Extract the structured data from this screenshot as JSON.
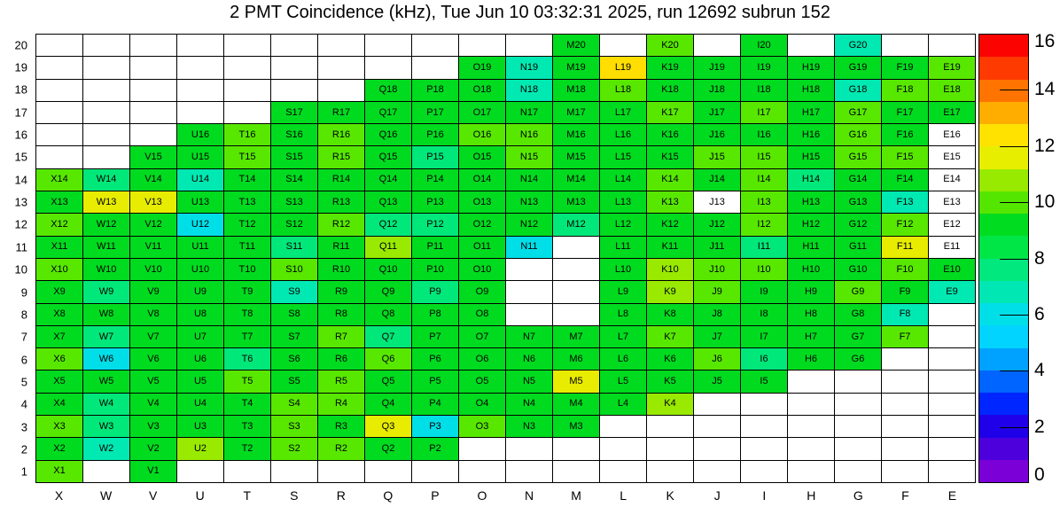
{
  "title": "2 PMT Coincidence (kHz), Tue Jun 10 03:32:31 2025, run 12692 subrun 152",
  "chart_data": {
    "type": "heatmap",
    "title": "2 PMT Coincidence (kHz), Tue Jun 10 03:32:31 2025, run 12692 subrun 152",
    "units": "kHz",
    "run": "12692",
    "subrun": "152",
    "timestamp_shown": "Tue Jun 10 03:32:31 2025",
    "x_categories": [
      "X",
      "W",
      "V",
      "U",
      "T",
      "S",
      "R",
      "Q",
      "P",
      "O",
      "N",
      "M",
      "L",
      "K",
      "J",
      "I",
      "H",
      "G",
      "F",
      "E"
    ],
    "y_categories": [
      1,
      2,
      3,
      4,
      5,
      6,
      7,
      8,
      9,
      10,
      11,
      12,
      13,
      14,
      15,
      16,
      17,
      18,
      19,
      20
    ],
    "zlim": [
      0,
      16
    ],
    "colorbar_tick_values": [
      0,
      2,
      4,
      6,
      8,
      10,
      12,
      14,
      16
    ],
    "colorbar_tick_labels": [
      "0",
      "2",
      "4",
      "6",
      "8",
      "10",
      "12",
      "14",
      "16"
    ],
    "grid_on": true,
    "legend_position": "right-colorbar",
    "cell_label_format": "{column}{row}",
    "palette_low_to_high": [
      "#7B00D8",
      "#4E00DC",
      "#1F00E8",
      "#0026FF",
      "#0064FF",
      "#00A2FF",
      "#00D4FF",
      "#00DFE8",
      "#00E7B4",
      "#00E87E",
      "#00E647",
      "#00DC20",
      "#55E600",
      "#97EA00",
      "#E8EE00",
      "#FFE200",
      "#FFAE00",
      "#FF7300",
      "#FF3A00",
      "#FB0300"
    ],
    "class_colors": {
      "cy": "#00DFE8",
      "tl": "#00E9B2",
      "sg": "#00E87A",
      "g": "#00DB1F",
      "lg": "#58E800",
      "yg": "#99EA00",
      "y": "#E8EC00",
      "gold": "#FFDE00",
      "wl": "#FFFFFF"
    },
    "class_value_estimates": {
      "cy": 6.0,
      "tl": 6.8,
      "sg": 7.6,
      "g": 9.2,
      "lg": 10.0,
      "yg": 10.8,
      "y": 11.6,
      "gold": 12.4,
      "wl": null
    },
    "rows": [
      {
        "y": 20,
        "cells": [
          "",
          "",
          "",
          "",
          "",
          "",
          "",
          "",
          "",
          "",
          "",
          "g",
          "",
          "lg",
          "",
          "g",
          "",
          "tl",
          "",
          ""
        ]
      },
      {
        "y": 19,
        "cells": [
          "",
          "",
          "",
          "",
          "",
          "",
          "",
          "",
          "",
          "g",
          "tl",
          "g",
          "gold",
          "g",
          "g",
          "g",
          "g",
          "g",
          "g",
          "lg"
        ]
      },
      {
        "y": 18,
        "cells": [
          "",
          "",
          "",
          "",
          "",
          "",
          "",
          "g",
          "g",
          "g",
          "tl",
          "g",
          "lg",
          "g",
          "g",
          "g",
          "g",
          "tl",
          "lg",
          "lg"
        ]
      },
      {
        "y": 17,
        "cells": [
          "",
          "",
          "",
          "",
          "",
          "g",
          "g",
          "g",
          "g",
          "g",
          "g",
          "g",
          "g",
          "lg",
          "g",
          "lg",
          "g",
          "lg",
          "g",
          "g"
        ]
      },
      {
        "y": 16,
        "cells": [
          "",
          "",
          "",
          "g",
          "lg",
          "g",
          "lg",
          "g",
          "g",
          "lg",
          "lg",
          "g",
          "g",
          "g",
          "g",
          "g",
          "g",
          "lg",
          "g",
          "wl"
        ]
      },
      {
        "y": 15,
        "cells": [
          "",
          "",
          "g",
          "g",
          "lg",
          "g",
          "lg",
          "g",
          "sg",
          "g",
          "lg",
          "g",
          "g",
          "g",
          "lg",
          "lg",
          "g",
          "lg",
          "lg",
          "wl"
        ]
      },
      {
        "y": 14,
        "cells": [
          "lg",
          "sg",
          "g",
          "tl",
          "g",
          "g",
          "g",
          "g",
          "g",
          "g",
          "g",
          "g",
          "g",
          "lg",
          "g",
          "lg",
          "sg",
          "g",
          "g",
          "wl"
        ]
      },
      {
        "y": 13,
        "cells": [
          "g",
          "y",
          "y",
          "g",
          "g",
          "g",
          "g",
          "g",
          "g",
          "g",
          "g",
          "g",
          "g",
          "lg",
          "wl",
          "lg",
          "g",
          "g",
          "tl",
          "wl"
        ]
      },
      {
        "y": 12,
        "cells": [
          "lg",
          "g",
          "g",
          "cy",
          "g",
          "g",
          "lg",
          "sg",
          "sg",
          "g",
          "g",
          "sg",
          "g",
          "g",
          "g",
          "lg",
          "g",
          "g",
          "lg",
          "wl"
        ]
      },
      {
        "y": 11,
        "cells": [
          "g",
          "g",
          "g",
          "g",
          "g",
          "sg",
          "g",
          "yg",
          "g",
          "g",
          "cy",
          "",
          "g",
          "g",
          "g",
          "sg",
          "g",
          "g",
          "y",
          "wl"
        ]
      },
      {
        "y": 10,
        "cells": [
          "lg",
          "g",
          "g",
          "g",
          "g",
          "lg",
          "g",
          "g",
          "g",
          "g",
          "",
          "",
          "g",
          "yg",
          "lg",
          "lg",
          "g",
          "g",
          "lg",
          "g"
        ]
      },
      {
        "y": 9,
        "cells": [
          "g",
          "sg",
          "g",
          "g",
          "g",
          "tl",
          "g",
          "g",
          "sg",
          "g",
          "",
          "",
          "g",
          "yg",
          "lg",
          "g",
          "g",
          "lg",
          "g",
          "tl"
        ]
      },
      {
        "y": 8,
        "cells": [
          "g",
          "g",
          "g",
          "g",
          "g",
          "g",
          "g",
          "g",
          "g",
          "g",
          "",
          "",
          "g",
          "g",
          "g",
          "g",
          "g",
          "g",
          "tl",
          ""
        ]
      },
      {
        "y": 7,
        "cells": [
          "g",
          "sg",
          "g",
          "g",
          "g",
          "g",
          "lg",
          "sg",
          "g",
          "g",
          "g",
          "g",
          "g",
          "lg",
          "g",
          "g",
          "g",
          "g",
          "lg",
          ""
        ]
      },
      {
        "y": 6,
        "cells": [
          "lg",
          "cy",
          "g",
          "g",
          "sg",
          "g",
          "g",
          "lg",
          "g",
          "g",
          "g",
          "g",
          "g",
          "g",
          "lg",
          "sg",
          "g",
          "g",
          "",
          ""
        ]
      },
      {
        "y": 5,
        "cells": [
          "g",
          "g",
          "g",
          "g",
          "lg",
          "g",
          "lg",
          "g",
          "g",
          "g",
          "g",
          "y",
          "g",
          "g",
          "g",
          "g",
          "",
          "",
          "",
          ""
        ]
      },
      {
        "y": 4,
        "cells": [
          "g",
          "sg",
          "g",
          "g",
          "g",
          "lg",
          "lg",
          "g",
          "g",
          "g",
          "g",
          "g",
          "g",
          "yg",
          "",
          "",
          "",
          "",
          "",
          ""
        ]
      },
      {
        "y": 3,
        "cells": [
          "lg",
          "sg",
          "g",
          "g",
          "g",
          "lg",
          "g",
          "y",
          "cy",
          "lg",
          "g",
          "g",
          "",
          "",
          "",
          "",
          "",
          "",
          "",
          ""
        ]
      },
      {
        "y": 2,
        "cells": [
          "g",
          "tl",
          "g",
          "yg",
          "g",
          "lg",
          "lg",
          "g",
          "g",
          "",
          "",
          "",
          "",
          "",
          "",
          "",
          "",
          "",
          "",
          ""
        ]
      },
      {
        "y": 1,
        "cells": [
          "lg",
          "",
          "g",
          "",
          "",
          "",
          "",
          "",
          "",
          "",
          "",
          "",
          "",
          "",
          "",
          "",
          "",
          "",
          "",
          ""
        ]
      }
    ]
  }
}
